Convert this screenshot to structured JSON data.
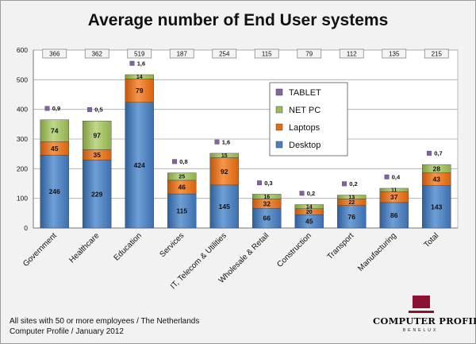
{
  "title": "Average number of End User systems",
  "footnote": {
    "line1": "All sites with 50 or more employees / The Netherlands",
    "line2": "Computer Profile / January 2012"
  },
  "logo": {
    "name": "COMPUTER PROFILE",
    "sub": "BENELUX"
  },
  "chart_data": {
    "type": "bar",
    "stacked": true,
    "title": "Average number of End User systems",
    "ylim": [
      0,
      600
    ],
    "y_ticks": [
      "0",
      "100",
      "200",
      "300",
      "400",
      "500",
      "600"
    ],
    "grid": true,
    "legend_position": "right-center",
    "categories": [
      "Government",
      "Healthcare",
      "Education",
      "Services",
      "IT, Telecom & Utilities",
      "Wholesale & Retail",
      "Construction",
      "Transport",
      "Manufacturing",
      "Total"
    ],
    "totals": [
      "366",
      "362",
      "519",
      "187",
      "254",
      "115",
      "79",
      "112",
      "135",
      "215"
    ],
    "series": [
      {
        "name": "Desktop",
        "color": "#4a7ebb",
        "values": [
          246,
          229,
          424,
          115,
          145,
          66,
          45,
          76,
          86,
          143
        ],
        "labels": [
          "246",
          "229",
          "424",
          "115",
          "145",
          "66",
          "45",
          "76",
          "86",
          "143"
        ]
      },
      {
        "name": "Laptops",
        "color": "#e46c0a",
        "values": [
          45,
          35,
          79,
          46,
          92,
          32,
          20,
          22,
          37,
          43
        ],
        "labels": [
          "45",
          "35",
          "79",
          "46",
          "92",
          "32",
          "20",
          "22",
          "37",
          "43"
        ]
      },
      {
        "name": "NET PC",
        "color": "#9bbb59",
        "values": [
          74,
          97,
          14,
          25,
          15,
          16,
          14,
          13,
          11,
          28
        ],
        "labels": [
          "74",
          "97",
          "14",
          "25",
          "15",
          "16",
          "14",
          "13",
          "11",
          "28"
        ]
      },
      {
        "name": "TABLET",
        "color": "#8064a2",
        "values": [
          0.9,
          0.5,
          1.6,
          0.8,
          1.6,
          0.3,
          0.2,
          0.2,
          0.4,
          0.7
        ],
        "labels": [
          "0,9",
          "0,5",
          "1,6",
          "0,8",
          "1,6",
          "0,3",
          "0,2",
          "0,2",
          "0,4",
          "0,7"
        ]
      }
    ],
    "legend_order": [
      "TABLET",
      "NET PC",
      "Laptops",
      "Desktop"
    ]
  }
}
